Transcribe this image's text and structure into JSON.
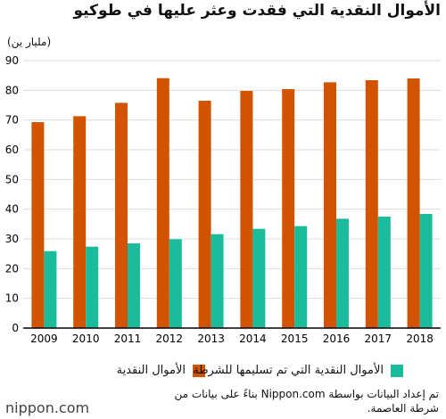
{
  "title": "الأموال النقدية التي فقدت وعثر عليها في طوكيو",
  "unit_label": "(مليار ين)",
  "colors": {
    "lost": "#d35400",
    "returned": "#1abc9c",
    "axis": "#000000",
    "grid": "#dddddd"
  },
  "chart_data": {
    "type": "bar",
    "categories": [
      "2009",
      "2010",
      "2011",
      "2012",
      "2013",
      "2014",
      "2015",
      "2016",
      "2017",
      "2018"
    ],
    "series": [
      {
        "name": "الأموال النقدية",
        "values": [
          69.3,
          71.3,
          75.8,
          84.1,
          76.5,
          79.8,
          80.4,
          82.7,
          83.4,
          84.0
        ]
      },
      {
        "name": "الأموال النقدية التي تم تسليمها للشرطة",
        "values": [
          25.9,
          27.4,
          28.5,
          29.9,
          31.6,
          33.4,
          34.3,
          36.8,
          37.5,
          38.4
        ]
      }
    ],
    "yticks": [
      0,
      10,
      20,
      30,
      40,
      50,
      60,
      70,
      80,
      90
    ],
    "ylim": [
      0,
      90
    ],
    "title": "الأموال النقدية التي فقدت وعثر عليها في طوكيو",
    "ylabel": "(مليار ين)"
  },
  "footnote": "تم إعداد البيانات بواسطة Nippon.com بناءً على بيانات من شرطة العاصمة.",
  "logo": "nippon.com"
}
